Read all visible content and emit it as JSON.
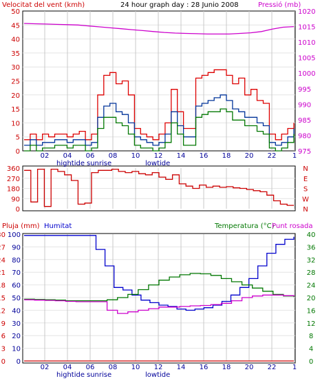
{
  "header": {
    "wind_label": "Velocitat del vent (kmh)",
    "title": "24 hour graph day : 28 Junio 2008",
    "pressure_label": "Pressió (mb)"
  },
  "footer_labels": {
    "hightide": "hightide",
    "sunrise": "sunrise",
    "lowtide": "lowtide"
  },
  "x_ticks": [
    "02",
    "04",
    "06",
    "08",
    "10",
    "12",
    "14",
    "16",
    "18",
    "20",
    "22",
    "1"
  ],
  "chart_data": [
    {
      "type": "line",
      "title": "24 hour graph day : 28 Junio 2008",
      "x_ticks": [
        "02",
        "04",
        "06",
        "08",
        "10",
        "12",
        "14",
        "16",
        "18",
        "20",
        "22",
        "1"
      ],
      "left_axis": {
        "label": "Velocitat del vent (kmh)",
        "ticks": [
          "0",
          "5",
          "10",
          "15",
          "20",
          "25",
          "30",
          "35",
          "40",
          "45",
          "50"
        ],
        "range": [
          0,
          50
        ],
        "color": "#cc0000"
      },
      "right_axis": {
        "label": "Pressió (mb)",
        "ticks": [
          "975",
          "980",
          "985",
          "990",
          "995",
          "1000",
          "1005",
          "1010",
          "1015",
          "1020"
        ],
        "range": [
          975,
          1020
        ],
        "color": "#cc00cc"
      },
      "series": [
        {
          "name": "Pressió (mb)",
          "color": "#cc00cc",
          "axis": "right",
          "values": [
            1016,
            1015.9,
            1015.8,
            1015.7,
            1015.6,
            1015.5,
            1015.2,
            1014.9,
            1014.6,
            1014.3,
            1014.0,
            1013.7,
            1013.4,
            1013.1,
            1012.9,
            1012.8,
            1012.7,
            1012.6,
            1012.6,
            1012.6,
            1012.8,
            1013.0,
            1013.4,
            1014.2,
            1014.8,
            1015.0
          ]
        },
        {
          "color": "#dd0000",
          "axis": "left",
          "values": [
            4,
            6,
            4,
            6,
            5,
            6,
            6,
            5,
            6,
            7,
            4,
            6,
            20,
            27,
            28,
            24,
            25,
            20,
            8,
            6,
            5,
            4,
            6,
            10,
            22,
            14,
            8,
            8,
            26,
            27,
            28,
            29,
            29,
            27,
            24,
            26,
            20,
            22,
            18,
            17,
            6,
            4,
            6,
            8,
            10
          ]
        },
        {
          "color": "#003399",
          "axis": "left",
          "values": [
            2,
            4,
            2,
            3,
            3,
            4,
            4,
            3,
            4,
            4,
            2,
            3,
            12,
            16,
            17,
            14,
            13,
            10,
            5,
            4,
            3,
            2,
            3,
            6,
            14,
            9,
            5,
            5,
            16,
            17,
            18,
            19,
            20,
            18,
            15,
            14,
            12,
            12,
            10,
            9,
            3,
            2,
            3,
            5,
            8
          ]
        },
        {
          "color": "#007700",
          "axis": "left",
          "values": [
            0,
            2,
            0,
            1,
            1,
            2,
            2,
            1,
            2,
            2,
            0,
            1,
            8,
            12,
            12,
            10,
            9,
            6,
            2,
            1,
            1,
            0,
            1,
            3,
            10,
            6,
            2,
            2,
            12,
            13,
            14,
            14,
            15,
            14,
            11,
            11,
            9,
            9,
            7,
            6,
            1,
            0,
            1,
            3,
            6
          ]
        }
      ]
    },
    {
      "type": "line",
      "left_axis": {
        "ticks": [
          "0",
          "90",
          "180",
          "270",
          "360"
        ],
        "range": [
          0,
          360
        ],
        "color": "#cc0000"
      },
      "right_axis": {
        "ticks": [
          "N",
          "W",
          "S",
          "E",
          "N"
        ]
      },
      "series": [
        {
          "color": "#cc0000",
          "values": [
            340,
            60,
            350,
            20,
            350,
            330,
            300,
            250,
            40,
            50,
            320,
            340,
            340,
            350,
            330,
            320,
            330,
            310,
            300,
            320,
            280,
            260,
            300,
            220,
            200,
            180,
            210,
            190,
            200,
            190,
            195,
            185,
            180,
            170,
            160,
            150,
            120,
            70,
            40,
            30,
            30
          ]
        }
      ]
    },
    {
      "type": "line",
      "x_ticks": [
        "02",
        "04",
        "06",
        "08",
        "10",
        "12",
        "14",
        "16",
        "18",
        "20",
        "22",
        "1"
      ],
      "axis_labels": {
        "rain": "Pluja (mm)",
        "humidity": "Humitat",
        "temperature": "Temperatura (°C)",
        "dewpoint": "Punt rosada"
      },
      "left_axis_rain": {
        "ticks": [
          "0",
          "3",
          "6",
          "9",
          "12",
          "15",
          "18",
          "21",
          "24",
          "27",
          "30"
        ],
        "range": [
          0,
          30
        ],
        "color": "#cc0000"
      },
      "left_axis_humidity": {
        "ticks": [
          "0",
          "10",
          "20",
          "30",
          "40",
          "50",
          "60",
          "70",
          "80",
          "90",
          "100"
        ],
        "range": [
          0,
          100
        ],
        "color": "#000099"
      },
      "right_axis": {
        "ticks": [
          "0",
          "4",
          "8",
          "12",
          "16",
          "20",
          "24",
          "28",
          "32",
          "36",
          "40"
        ],
        "range": [
          0,
          40
        ],
        "color": "#007700"
      },
      "series": [
        {
          "name": "Humitat",
          "color": "#0000cc",
          "axis": "humidity",
          "values": [
            99,
            99,
            99,
            99,
            99,
            99,
            99,
            99,
            88,
            75,
            58,
            56,
            52,
            48,
            46,
            44,
            43,
            41,
            40,
            41,
            42,
            44,
            47,
            52,
            58,
            65,
            75,
            85,
            92,
            96,
            98
          ]
        },
        {
          "name": "Temperatura (°C)",
          "color": "#007700",
          "axis": "right",
          "values": [
            19.5,
            19.4,
            19.3,
            19.2,
            19.0,
            19.0,
            19.0,
            19.0,
            19.3,
            20.0,
            21.0,
            22.5,
            24.0,
            25.5,
            26.5,
            27.2,
            27.6,
            27.5,
            27.0,
            26.0,
            25.0,
            24.0,
            23.0,
            22.0,
            21.0,
            20.5,
            20.2
          ]
        },
        {
          "name": "Punt rosada",
          "color": "#cc00cc",
          "axis": "right",
          "values": [
            19.3,
            19.2,
            19.1,
            19.0,
            18.8,
            18.7,
            18.7,
            18.7,
            16.0,
            15.0,
            15.5,
            16.0,
            16.5,
            17.0,
            17.0,
            17.2,
            17.4,
            17.5,
            17.8,
            18.2,
            19.0,
            20.0,
            20.5,
            20.8,
            20.8,
            20.6,
            20.4
          ]
        },
        {
          "name": "Pluja (mm)",
          "color": "#cc0000",
          "axis": "rain",
          "values": [
            0,
            0
          ]
        }
      ]
    }
  ]
}
